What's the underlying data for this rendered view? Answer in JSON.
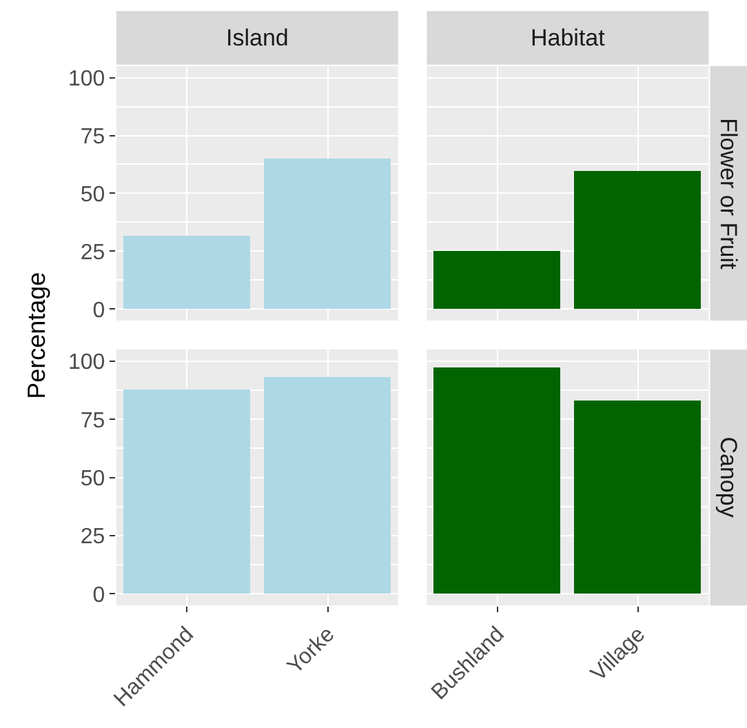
{
  "chart_data": [
    {
      "type": "bar",
      "title": "Island",
      "ylabel": "Percentage",
      "categories": [
        "Hammond",
        "Yorke"
      ],
      "values": [
        32,
        65
      ],
      "color": "#add8e6",
      "ylim": [
        -5,
        105
      ],
      "yticks": [
        0,
        25,
        50,
        75,
        100
      ],
      "grid": true,
      "tick_labels": "y"
    },
    {
      "type": "bar",
      "title": "Habitat",
      "annotations": [
        "Flower or Fruit"
      ],
      "categories": [
        "Bushland",
        "Village"
      ],
      "values": [
        25,
        60
      ],
      "color": "#006400",
      "ylim": [
        -5,
        105
      ],
      "yticks": [
        0,
        25,
        50,
        75,
        100
      ],
      "grid": true,
      "tick_labels": false
    },
    {
      "type": "bar",
      "categories": [
        "Hammond",
        "Yorke"
      ],
      "values": [
        88,
        93
      ],
      "color": "#add8e6",
      "ylim": [
        -5,
        105
      ],
      "yticks": [
        0,
        25,
        50,
        75,
        100
      ],
      "grid": true
    },
    {
      "type": "bar",
      "annotations": [
        "Canopy"
      ],
      "categories": [
        "Bushland",
        "Village"
      ],
      "values": [
        97.5,
        83
      ],
      "color": "#006400",
      "ylim": [
        -5,
        105
      ],
      "yticks": [
        0,
        25,
        50,
        75,
        100
      ],
      "grid": true,
      "tick_labels": "x"
    }
  ]
}
